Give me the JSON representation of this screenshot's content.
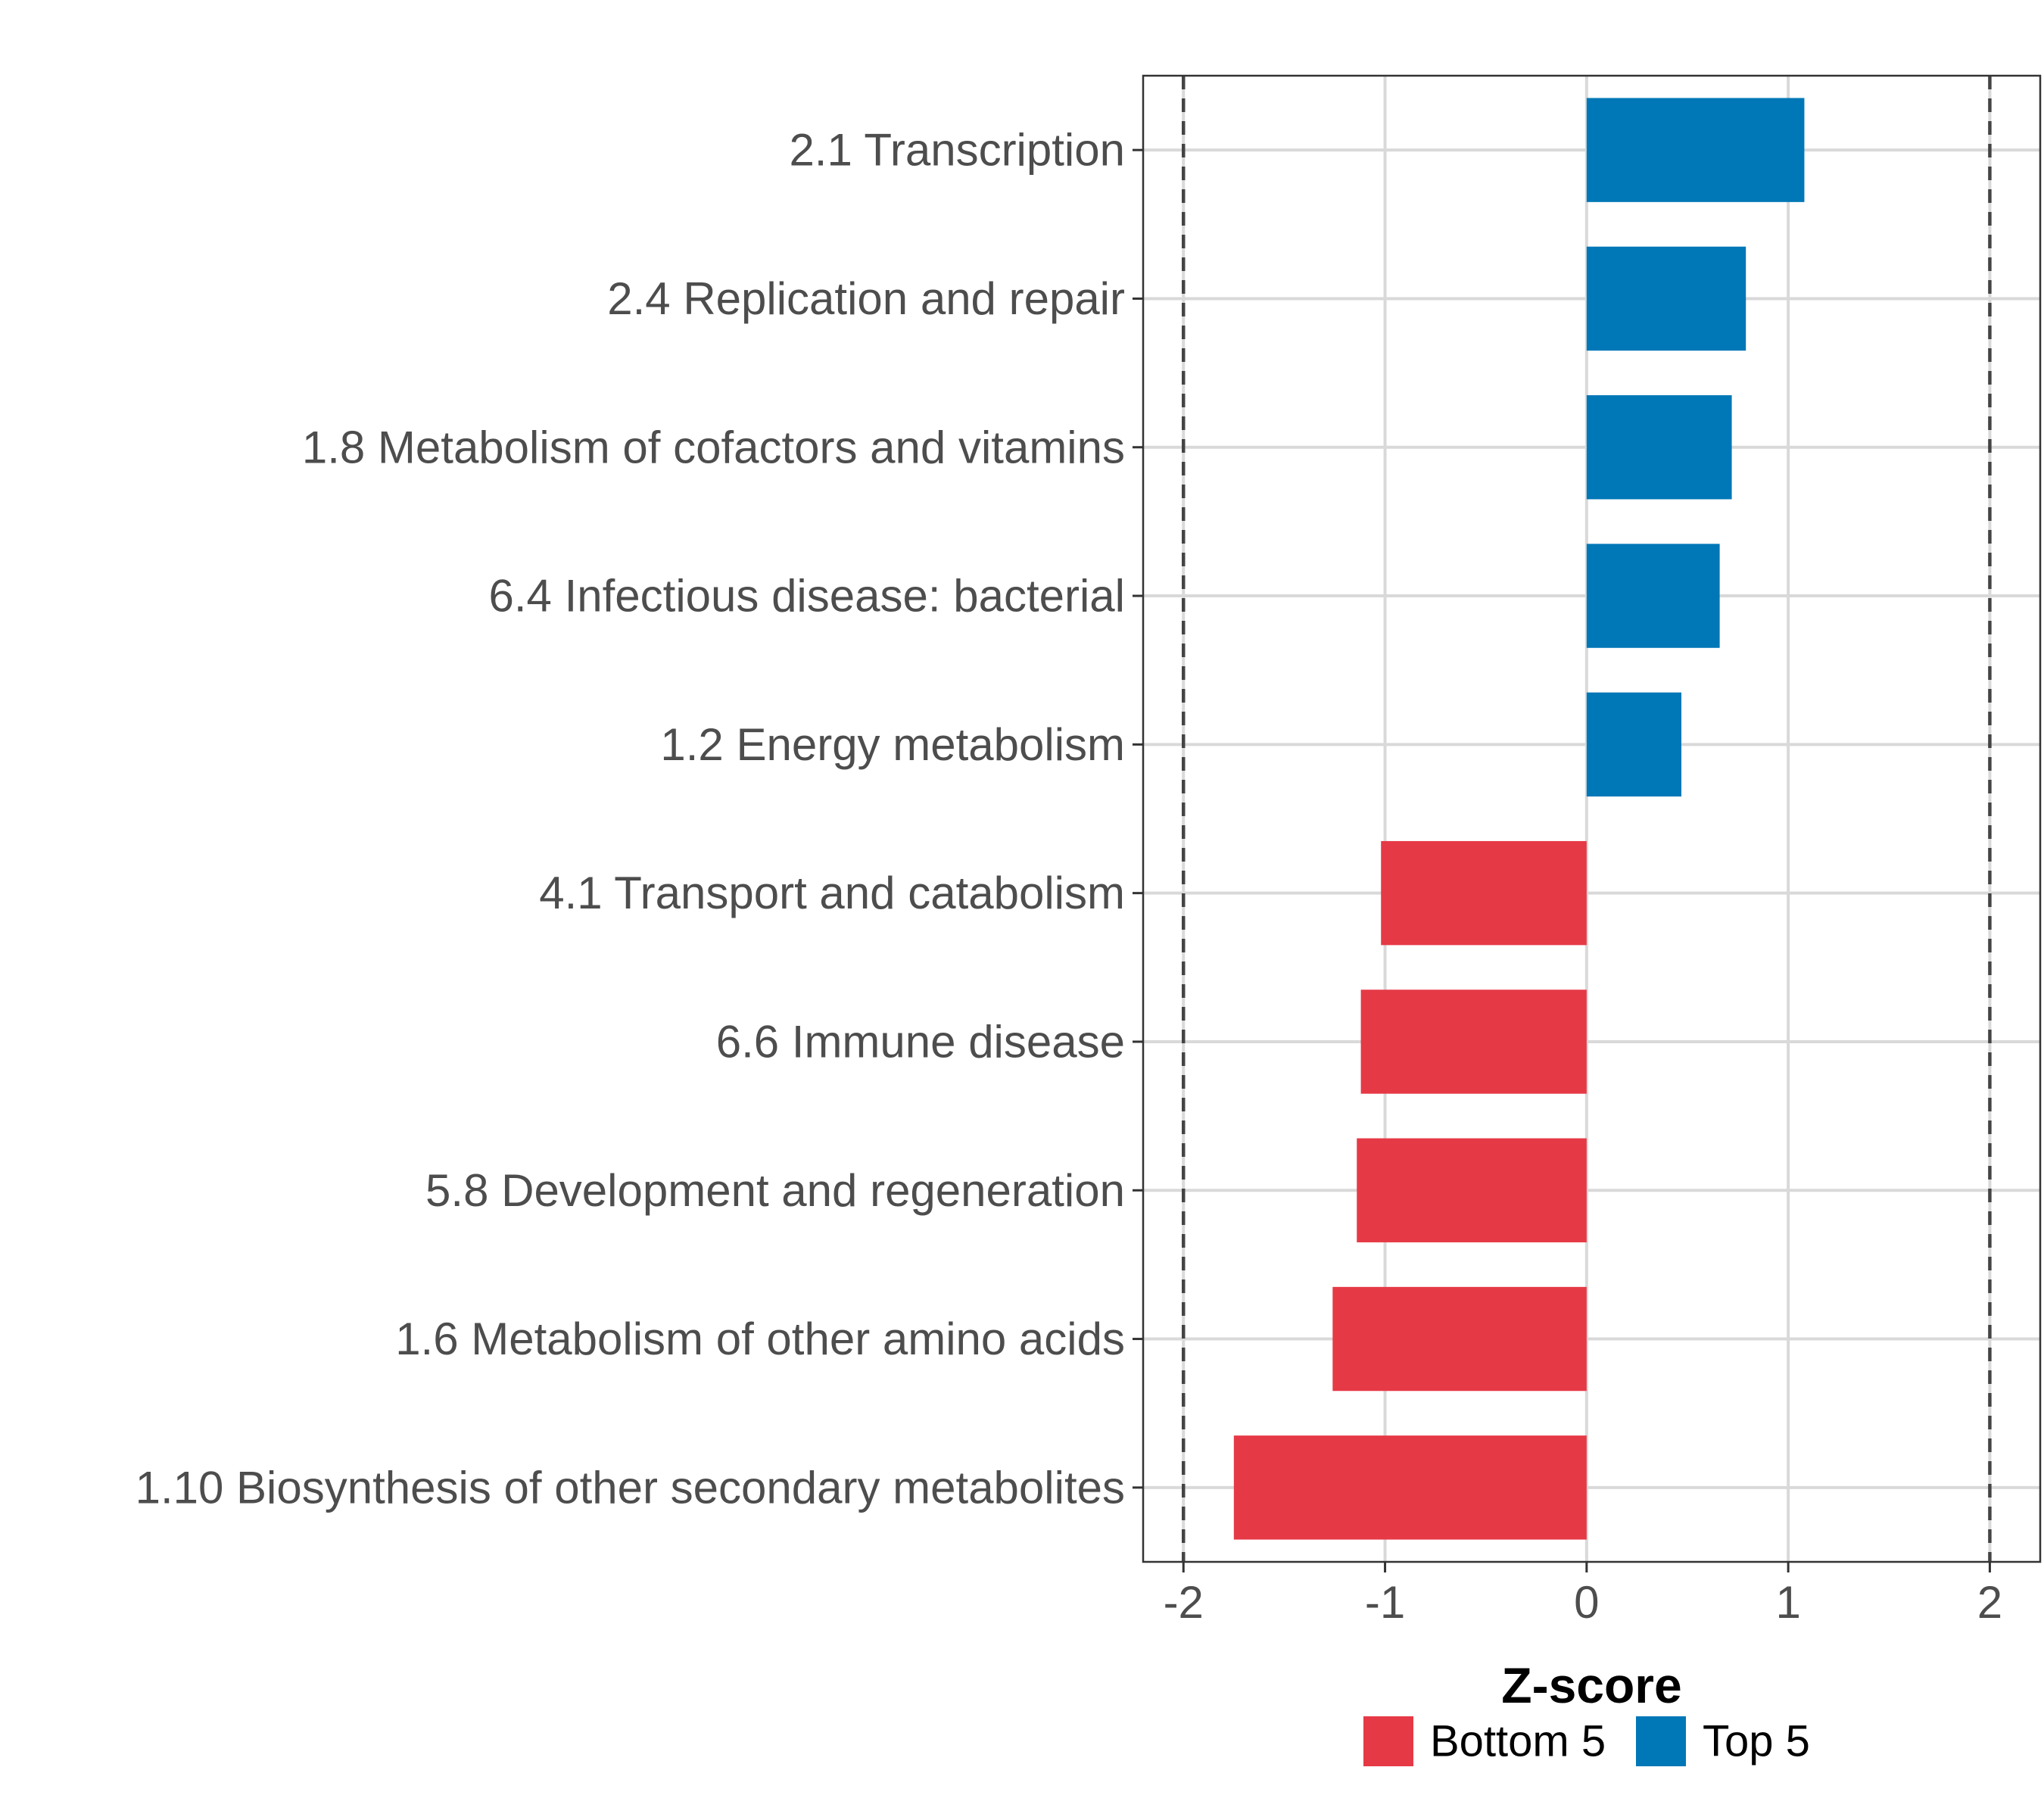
{
  "chart_data": {
    "type": "bar",
    "orientation": "horizontal",
    "title": "",
    "xlabel": "Z-score",
    "ylabel": "",
    "xlim": [
      -2.2,
      2.25
    ],
    "xticks": [
      -2,
      -1,
      0,
      1,
      2
    ],
    "xtick_labels": [
      "-2",
      "-1",
      "0",
      "1",
      "2"
    ],
    "grid": true,
    "reference_lines": [
      -2,
      2
    ],
    "categories": [
      "2.1 Transcription",
      "2.4 Replication and repair",
      "1.8 Metabolism of cofactors and vitamins",
      "6.4 Infectious disease: bacterial",
      "1.2 Energy metabolism",
      "4.1 Transport and catabolism",
      "6.6 Immune disease",
      "5.8 Development and regeneration",
      "1.6 Metabolism of other amino acids",
      "1.10 Biosynthesis of other secondary metabolites"
    ],
    "values": [
      1.08,
      0.79,
      0.72,
      0.66,
      0.47,
      -1.02,
      -1.12,
      -1.14,
      -1.26,
      -1.75
    ],
    "groups": [
      "Top 5",
      "Top 5",
      "Top 5",
      "Top 5",
      "Top 5",
      "Bottom 5",
      "Bottom 5",
      "Bottom 5",
      "Bottom 5",
      "Bottom 5"
    ],
    "colors": {
      "Bottom 5": "#e63946",
      "Top 5": "#0077b6"
    },
    "legend": {
      "position": "bottom",
      "entries": [
        "Bottom 5",
        "Top 5"
      ]
    }
  }
}
